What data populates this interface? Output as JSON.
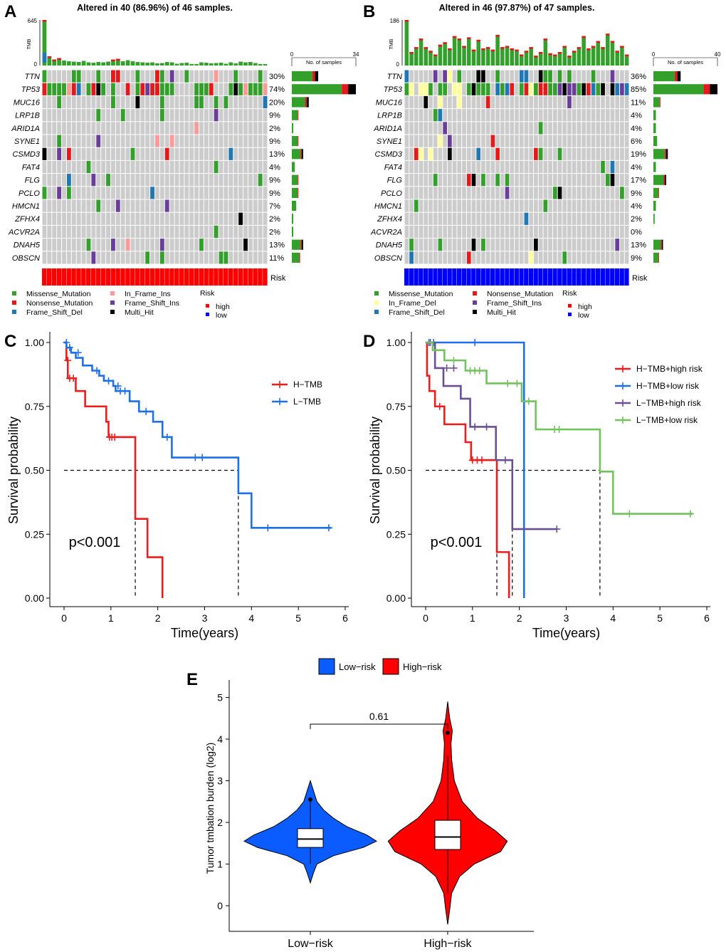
{
  "mutation_colors": {
    "Missense_Mutation": "#33a02c",
    "Nonsense_Mutation": "#e31a1c",
    "Frame_Shift_Del": "#1f78b4",
    "In_Frame_Ins": "#fb9a99",
    "Frame_Shift_Ins": "#6a3d9a",
    "Multi_Hit": "#000000",
    "In_Frame_Del": "#ffff99",
    "none": "#cccccc",
    "high": "#ff0000",
    "low": "#0000ff"
  },
  "chart_data": [
    {
      "type": "oncoplot",
      "panel": "A",
      "title": "Altered in 40 (86.96%) of 46 samples.",
      "tmb_label": "TMB",
      "tmb_max": "645",
      "tmb_min": "0",
      "n_samples": 46,
      "samples_axis_label": "No. of samples",
      "samples_axis_min": "0",
      "samples_axis_max": "34",
      "risk_label": "Risk",
      "risk_group": "high",
      "tmb_values": [
        645,
        130,
        85,
        105,
        70,
        60,
        55,
        50,
        65,
        45,
        40,
        50,
        45,
        55,
        85,
        95,
        60,
        75,
        60,
        50,
        45,
        40,
        45,
        30,
        35,
        50,
        45,
        25,
        35,
        40,
        20,
        15,
        45,
        40,
        30,
        35,
        40,
        25,
        45,
        30,
        55,
        45,
        50,
        35,
        20,
        15
      ],
      "genes": [
        {
          "name": "TTN",
          "pct": "30%",
          "count": 14
        },
        {
          "name": "TP53",
          "pct": "74%",
          "count": 34
        },
        {
          "name": "MUC16",
          "pct": "20%",
          "count": 9
        },
        {
          "name": "LRP1B",
          "pct": "9%",
          "count": 4
        },
        {
          "name": "ARID1A",
          "pct": "2%",
          "count": 1
        },
        {
          "name": "SYNE1",
          "pct": "9%",
          "count": 4
        },
        {
          "name": "CSMD3",
          "pct": "13%",
          "count": 6
        },
        {
          "name": "FAT4",
          "pct": "4%",
          "count": 2
        },
        {
          "name": "FLG",
          "pct": "9%",
          "count": 4
        },
        {
          "name": "PCLO",
          "pct": "9%",
          "count": 4
        },
        {
          "name": "HMCN1",
          "pct": "7%",
          "count": 3
        },
        {
          "name": "ZFHX4",
          "pct": "2%",
          "count": 1
        },
        {
          "name": "ACVR2A",
          "pct": "2%",
          "count": 1
        },
        {
          "name": "DNAH5",
          "pct": "13%",
          "count": 6
        },
        {
          "name": "OBSCN",
          "pct": "11%",
          "count": 5
        }
      ],
      "legend": [
        [
          "Missense_Mutation",
          "In_Frame_Ins"
        ],
        [
          "Nonsense_Mutation",
          "Frame_Shift_Ins"
        ],
        [
          "Frame_Shift_Del",
          "Multi_Hit"
        ]
      ],
      "risk_legend_title": "Risk",
      "risk_legend": [
        "high",
        "low"
      ]
    },
    {
      "type": "oncoplot",
      "panel": "B",
      "title": "Altered in 46 (97.87%) of 47 samples.",
      "tmb_label": "TMB",
      "tmb_max": "186",
      "tmb_min": "0",
      "n_samples": 47,
      "samples_axis_label": "No. of samples",
      "samples_axis_min": "0",
      "samples_axis_max": "40",
      "risk_label": "Risk",
      "risk_group": "low",
      "tmb_values": [
        186,
        55,
        75,
        110,
        75,
        60,
        45,
        85,
        95,
        70,
        120,
        110,
        80,
        115,
        65,
        105,
        70,
        75,
        65,
        125,
        75,
        80,
        70,
        65,
        45,
        60,
        75,
        40,
        55,
        110,
        50,
        45,
        55,
        80,
        40,
        60,
        75,
        120,
        70,
        80,
        100,
        75,
        130,
        100,
        60,
        80,
        45
      ],
      "genes": [
        {
          "name": "TTN",
          "pct": "36%",
          "count": 17
        },
        {
          "name": "TP53",
          "pct": "85%",
          "count": 40
        },
        {
          "name": "MUC16",
          "pct": "11%",
          "count": 5
        },
        {
          "name": "LRP1B",
          "pct": "4%",
          "count": 2
        },
        {
          "name": "ARID1A",
          "pct": "4%",
          "count": 2
        },
        {
          "name": "SYNE1",
          "pct": "6%",
          "count": 3
        },
        {
          "name": "CSMD3",
          "pct": "19%",
          "count": 9
        },
        {
          "name": "FAT4",
          "pct": "4%",
          "count": 2
        },
        {
          "name": "FLG",
          "pct": "17%",
          "count": 8
        },
        {
          "name": "PCLO",
          "pct": "9%",
          "count": 4
        },
        {
          "name": "HMCN1",
          "pct": "4%",
          "count": 2
        },
        {
          "name": "ZFHX4",
          "pct": "2%",
          "count": 1
        },
        {
          "name": "ACVR2A",
          "pct": "0%",
          "count": 0
        },
        {
          "name": "DNAH5",
          "pct": "13%",
          "count": 6
        },
        {
          "name": "OBSCN",
          "pct": "9%",
          "count": 4
        }
      ],
      "legend": [
        [
          "Missense_Mutation",
          "Nonsense_Mutation"
        ],
        [
          "In_Frame_Del",
          "Frame_Shift_Ins"
        ],
        [
          "Frame_Shift_Del",
          "Multi_Hit"
        ]
      ],
      "risk_legend_title": "Risk",
      "risk_legend": [
        "high",
        "low"
      ]
    },
    {
      "type": "line",
      "subtype": "kaplan-meier",
      "panel": "C",
      "xlabel": "Time(years)",
      "ylabel": "Survival probability",
      "xlim": [
        0,
        6
      ],
      "ylim": [
        0,
        1
      ],
      "x_ticks": [
        "0",
        "1",
        "2",
        "3",
        "4",
        "5",
        "6"
      ],
      "y_ticks": [
        "0.00",
        "0.25",
        "0.50",
        "0.75",
        "1.00"
      ],
      "pvalue": "p<0.001",
      "median_lines": [
        1.52,
        3.72
      ],
      "legend_position": "right",
      "series": [
        {
          "name": "H−TMB",
          "color": "#ee1c1c",
          "steps": [
            [
              0,
              1.0
            ],
            [
              0.05,
              0.93
            ],
            [
              0.08,
              0.86
            ],
            [
              0.25,
              0.81
            ],
            [
              0.45,
              0.75
            ],
            [
              0.9,
              0.69
            ],
            [
              0.95,
              0.63
            ],
            [
              1.52,
              0.31
            ],
            [
              1.78,
              0.16
            ],
            [
              2.1,
              0.0
            ]
          ],
          "censors": [
            [
              0.08,
              0.93
            ],
            [
              0.12,
              0.86
            ],
            [
              0.2,
              0.86
            ],
            [
              0.97,
              0.63
            ],
            [
              1.02,
              0.63
            ],
            [
              1.08,
              0.63
            ]
          ]
        },
        {
          "name": "L−TMB",
          "color": "#1f6fe8",
          "steps": [
            [
              0,
              1.0
            ],
            [
              0.05,
              0.98
            ],
            [
              0.15,
              0.96
            ],
            [
              0.25,
              0.94
            ],
            [
              0.4,
              0.91
            ],
            [
              0.6,
              0.89
            ],
            [
              0.75,
              0.87
            ],
            [
              0.85,
              0.85
            ],
            [
              1.05,
              0.83
            ],
            [
              1.1,
              0.81
            ],
            [
              1.4,
              0.77
            ],
            [
              1.6,
              0.73
            ],
            [
              1.9,
              0.69
            ],
            [
              2.1,
              0.63
            ],
            [
              2.3,
              0.55
            ],
            [
              3.72,
              0.41
            ],
            [
              4.0,
              0.275
            ],
            [
              5.7,
              0.275
            ]
          ],
          "censors": [
            [
              0.05,
              1.0
            ],
            [
              0.12,
              0.98
            ],
            [
              0.3,
              0.96
            ],
            [
              0.7,
              0.89
            ],
            [
              0.95,
              0.85
            ],
            [
              1.15,
              0.83
            ],
            [
              1.2,
              0.81
            ],
            [
              1.3,
              0.81
            ],
            [
              1.75,
              0.73
            ],
            [
              2.2,
              0.63
            ],
            [
              2.8,
              0.55
            ],
            [
              2.95,
              0.55
            ],
            [
              4.35,
              0.275
            ],
            [
              5.65,
              0.275
            ]
          ]
        }
      ]
    },
    {
      "type": "line",
      "subtype": "kaplan-meier",
      "panel": "D",
      "xlabel": "Time(years)",
      "ylabel": "Survival probability",
      "xlim": [
        0,
        6
      ],
      "ylim": [
        0,
        1
      ],
      "x_ticks": [
        "0",
        "1",
        "2",
        "3",
        "4",
        "5",
        "6"
      ],
      "y_ticks": [
        "0.00",
        "0.25",
        "0.50",
        "0.75",
        "1.00"
      ],
      "pvalue": "p<0.001",
      "median_lines": [
        1.52,
        1.85,
        2.1,
        3.72
      ],
      "legend_position": "right",
      "series": [
        {
          "name": "H−TMB+high risk",
          "color": "#ee1c1c",
          "steps": [
            [
              0,
              1.0
            ],
            [
              0.03,
              0.87
            ],
            [
              0.08,
              0.81
            ],
            [
              0.2,
              0.75
            ],
            [
              0.4,
              0.68
            ],
            [
              0.85,
              0.61
            ],
            [
              0.97,
              0.54
            ],
            [
              1.52,
              0.18
            ],
            [
              1.78,
              0.0
            ]
          ],
          "censors": [
            [
              0.3,
              0.75
            ],
            [
              1.0,
              0.54
            ],
            [
              1.1,
              0.54
            ],
            [
              1.2,
              0.54
            ]
          ]
        },
        {
          "name": "H−TMB+low risk",
          "color": "#1f6fe8",
          "steps": [
            [
              0,
              1.0
            ],
            [
              2.1,
              0.0
            ]
          ],
          "censors": [
            [
              0.07,
              1.0
            ],
            [
              0.17,
              1.0
            ],
            [
              1.05,
              1.0
            ]
          ]
        },
        {
          "name": "L−TMB+high risk",
          "color": "#6a5090",
          "steps": [
            [
              0,
              1.0
            ],
            [
              0.2,
              0.9
            ],
            [
              0.38,
              0.83
            ],
            [
              0.75,
              0.78
            ],
            [
              0.95,
              0.67
            ],
            [
              1.5,
              0.54
            ],
            [
              1.85,
              0.27
            ],
            [
              2.8,
              0.27
            ]
          ],
          "censors": [
            [
              0.1,
              1.0
            ],
            [
              0.45,
              0.9
            ],
            [
              0.6,
              0.9
            ],
            [
              1.05,
              0.67
            ],
            [
              1.3,
              0.67
            ],
            [
              1.7,
              0.54
            ],
            [
              2.8,
              0.27
            ]
          ]
        },
        {
          "name": "L−TMB+low risk",
          "color": "#72c25e",
          "steps": [
            [
              0,
              1.0
            ],
            [
              0.15,
              0.97
            ],
            [
              0.4,
              0.93
            ],
            [
              0.85,
              0.89
            ],
            [
              1.3,
              0.84
            ],
            [
              2.05,
              0.77
            ],
            [
              2.35,
              0.66
            ],
            [
              3.72,
              0.495
            ],
            [
              4.0,
              0.33
            ],
            [
              5.7,
              0.33
            ]
          ],
          "censors": [
            [
              0.6,
              0.93
            ],
            [
              0.95,
              0.89
            ],
            [
              1.05,
              0.89
            ],
            [
              1.15,
              0.89
            ],
            [
              1.75,
              0.84
            ],
            [
              1.95,
              0.84
            ],
            [
              2.2,
              0.77
            ],
            [
              2.75,
              0.66
            ],
            [
              2.85,
              0.66
            ],
            [
              4.35,
              0.33
            ],
            [
              5.65,
              0.33
            ]
          ]
        }
      ]
    },
    {
      "type": "violin",
      "panel": "E",
      "categories": [
        "Low−risk",
        "High−risk"
      ],
      "legend": [
        "Low−risk",
        "High−risk"
      ],
      "ylabel": "Tumor tmbation burden (log2)",
      "ylim": [
        -0.6,
        5
      ],
      "y_ticks": [
        "0",
        "1",
        "2",
        "3",
        "4",
        "5"
      ],
      "comparison_label": "0.61",
      "groups": [
        {
          "name": "Low−risk",
          "color": "#0a5cff",
          "min": 0.55,
          "max": 3.0,
          "q1": 1.4,
          "median": 1.6,
          "q3": 1.85,
          "whisker_low": 1.0,
          "whisker_high": 2.5,
          "outliers": [
            2.55
          ],
          "density": [
            [
              0.55,
              0.0
            ],
            [
              0.8,
              0.05
            ],
            [
              1.0,
              0.1
            ],
            [
              1.2,
              0.35
            ],
            [
              1.4,
              0.8
            ],
            [
              1.55,
              1.0
            ],
            [
              1.7,
              0.85
            ],
            [
              1.9,
              0.55
            ],
            [
              2.1,
              0.35
            ],
            [
              2.3,
              0.2
            ],
            [
              2.5,
              0.1
            ],
            [
              2.75,
              0.05
            ],
            [
              3.0,
              0.0
            ]
          ]
        },
        {
          "name": "High−risk",
          "color": "#ff0000",
          "min": -0.45,
          "max": 4.9,
          "q1": 1.35,
          "median": 1.65,
          "q3": 2.05,
          "whisker_low": 0.3,
          "whisker_high": 3.6,
          "outliers": [
            4.15
          ],
          "density": [
            [
              -0.45,
              0.0
            ],
            [
              -0.1,
              0.03
            ],
            [
              0.3,
              0.06
            ],
            [
              0.7,
              0.18
            ],
            [
              1.0,
              0.4
            ],
            [
              1.3,
              0.8
            ],
            [
              1.55,
              0.9
            ],
            [
              1.8,
              0.72
            ],
            [
              2.1,
              0.45
            ],
            [
              2.5,
              0.22
            ],
            [
              3.0,
              0.1
            ],
            [
              3.5,
              0.06
            ],
            [
              3.9,
              0.05
            ],
            [
              4.2,
              0.07
            ],
            [
              4.5,
              0.03
            ],
            [
              4.9,
              0.0
            ]
          ]
        }
      ]
    }
  ]
}
